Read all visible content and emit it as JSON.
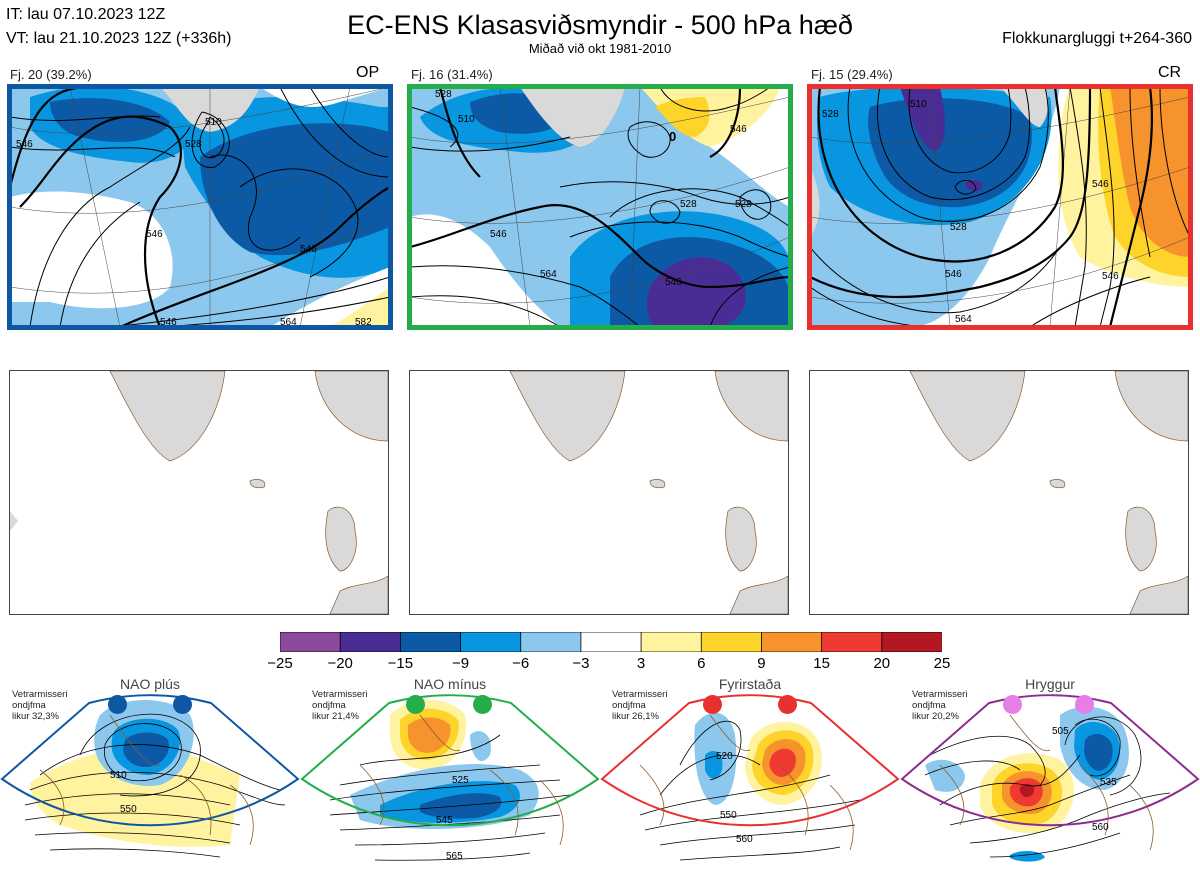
{
  "header": {
    "initial_time": "IT: lau 07.10.2023 12Z",
    "valid_time": "VT: lau 21.10.2023 12Z  (+336h)",
    "title": "EC-ENS Klasasviðsmyndir - 500 hPa hæð",
    "subtitle": "Miðað við okt 1981-2010",
    "cluster_window": "Flokkunargluggi t+264-360"
  },
  "colors": {
    "neg25": "#8b4a9c",
    "neg20": "#4a2d94",
    "neg15": "#0c5aa6",
    "neg9": "#0896e0",
    "neg6": "#8cc8ee",
    "zero": "#ffffff",
    "pos3": "#fff3a0",
    "pos6": "#fed42a",
    "pos9": "#f7932d",
    "pos15": "#ef3a33",
    "pos20": "#b31722",
    "land": "#d9d9d9",
    "coast": "#8b5a2b",
    "frame_op": "#0d57a3",
    "frame_c2": "#24ad4a",
    "frame_cr": "#e8302e"
  },
  "clusters": [
    {
      "label": "Fj. 20 (39.2%)",
      "tag": "OP"
    },
    {
      "label": "Fj. 16 (31.4%)",
      "tag": ""
    },
    {
      "label": "Fj. 15 (29.4%)",
      "tag": "CR"
    }
  ],
  "contour_labels": {
    "c1": [
      "546",
      "546",
      "528",
      "510",
      "546",
      "546",
      "564",
      "582"
    ],
    "c2": [
      "510",
      "528",
      "546",
      "564",
      "546",
      "528",
      "546",
      "528",
      "0"
    ],
    "c3": [
      "528",
      "510",
      "528",
      "546",
      "546",
      "564",
      "546"
    ]
  },
  "regimes": [
    {
      "name": "NAO plús",
      "info": [
        "Vetrarmisseri",
        "ondjfma",
        "likur 32,3%"
      ],
      "dot_color": "#0d57a3",
      "frame_color": "#0d57a3",
      "labels": [
        "510",
        "550"
      ]
    },
    {
      "name": "NAO mínus",
      "info": [
        "Vetrarmisseri",
        "ondjfma",
        "likur 21,4%"
      ],
      "dot_color": "#24ad4a",
      "frame_color": "#24ad4a",
      "labels": [
        "525",
        "545",
        "565"
      ]
    },
    {
      "name": "Fyrirstaða",
      "info": [
        "Vetrarmisseri",
        "ondjfma",
        "likur 26,1%"
      ],
      "dot_color": "#e8302e",
      "frame_color": "#e8302e",
      "labels": [
        "520",
        "550",
        "560"
      ]
    },
    {
      "name": "Hryggur",
      "info": [
        "Vetrarmisseri",
        "ondjfma",
        "likur 20,2%"
      ],
      "dot_color": "#e57ee6",
      "frame_color": "#8e2b8e",
      "labels": [
        "505",
        "535",
        "560"
      ]
    }
  ],
  "chart_data": {
    "type": "heatmap",
    "title": "EC-ENS Klasasviðsmyndir - 500 hPa hæð",
    "colorbar": {
      "ticks": [
        "−25",
        "−20",
        "−15",
        "−9",
        "−6",
        "−3",
        "3",
        "6",
        "9",
        "15",
        "20",
        "25"
      ],
      "bins": [
        {
          "range": [
            -25,
            -20
          ],
          "color": "#8b4a9c"
        },
        {
          "range": [
            -20,
            -15
          ],
          "color": "#4a2d94"
        },
        {
          "range": [
            -15,
            -9
          ],
          "color": "#0c5aa6"
        },
        {
          "range": [
            -9,
            -6
          ],
          "color": "#0896e0"
        },
        {
          "range": [
            -6,
            -3
          ],
          "color": "#8cc8ee"
        },
        {
          "range": [
            -3,
            3
          ],
          "color": "#ffffff"
        },
        {
          "range": [
            3,
            6
          ],
          "color": "#fff3a0"
        },
        {
          "range": [
            6,
            9
          ],
          "color": "#fed42a"
        },
        {
          "range": [
            9,
            15
          ],
          "color": "#f7932d"
        },
        {
          "range": [
            15,
            20
          ],
          "color": "#ef3a33"
        },
        {
          "range": [
            20,
            25
          ],
          "color": "#b31722"
        }
      ]
    }
  }
}
